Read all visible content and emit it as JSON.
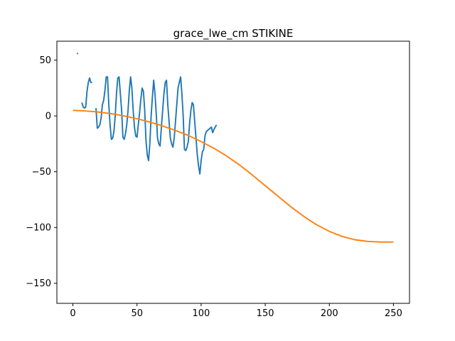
{
  "chart_data": {
    "type": "line",
    "title": "grace_lwe_cm STIKINE",
    "xlabel": "",
    "ylabel": "",
    "xlim": [
      -12.5,
      262.5
    ],
    "ylim": [
      -168,
      67
    ],
    "xticks": [
      0,
      50,
      100,
      150,
      200,
      250
    ],
    "yticks": [
      -150,
      -100,
      -50,
      0,
      50
    ],
    "grid": false,
    "colors": {
      "series": "#1f77b4",
      "trend": "#ff7f0e",
      "axes": "#000000",
      "background": "#ffffff"
    },
    "series": [
      {
        "segments": [
          {
            "x": [
              3,
              4
            ],
            "y": [
              56,
              56
            ]
          },
          {
            "x": [
              7,
              8,
              9,
              10,
              11,
              12,
              13,
              14,
              15
            ],
            "y": [
              12,
              8,
              7,
              8,
              22,
              30,
              34,
              30,
              30
            ]
          },
          {
            "x": [
              18,
              19,
              20,
              21,
              22,
              23,
              24,
              25,
              26,
              27,
              28,
              29,
              30,
              31,
              32,
              33,
              34,
              35,
              36,
              37,
              38,
              39,
              40,
              41,
              42,
              43,
              44,
              45,
              46,
              47,
              48,
              49,
              50,
              51,
              52,
              53,
              54,
              55,
              56,
              57,
              58,
              59,
              60,
              61,
              62,
              63,
              64,
              65,
              66,
              67,
              68,
              69,
              70,
              71,
              72,
              73,
              74,
              75,
              76,
              77,
              78,
              79,
              80,
              81,
              82,
              83,
              84,
              85,
              86,
              87,
              88,
              89,
              90,
              91,
              92,
              93,
              94,
              95,
              96,
              97,
              98,
              99,
              100,
              101,
              102,
              103,
              104,
              105,
              106,
              107,
              108,
              109,
              110,
              111,
              112
            ],
            "y": [
              7,
              -11,
              -10,
              -8,
              -2,
              10,
              14,
              23,
              35,
              35,
              10,
              -8,
              -21,
              -20,
              -14,
              0,
              20,
              34,
              35,
              20,
              5,
              -19,
              -21,
              -16,
              -8,
              5,
              23,
              35,
              25,
              5,
              -10,
              -18,
              -19,
              -8,
              3,
              15,
              25,
              22,
              5,
              -22,
              -35,
              -40,
              -25,
              0,
              17,
              32,
              20,
              2,
              -20,
              -25,
              -27,
              -10,
              5,
              20,
              30,
              32,
              10,
              -5,
              -20,
              -25,
              -28,
              -20,
              -5,
              10,
              25,
              30,
              35,
              20,
              0,
              -30,
              -31,
              -28,
              -23,
              -7,
              5,
              12,
              10,
              -5,
              -20,
              -35,
              -45,
              -52,
              -40,
              -32,
              -30,
              -18,
              -14,
              -13,
              -12,
              -11,
              -10,
              -15,
              -12,
              -10,
              -8
            ]
          }
        ]
      },
      {
        "x": [
          0,
          10,
          20,
          30,
          40,
          50,
          60,
          70,
          80,
          90,
          100,
          110,
          120,
          130,
          140,
          150,
          160,
          170,
          180,
          190,
          200,
          210,
          220,
          230,
          240,
          250
        ],
        "y": [
          5,
          4.5,
          3.5,
          2,
          0,
          -2.5,
          -5.5,
          -9,
          -13,
          -17.5,
          -23,
          -29,
          -36,
          -44,
          -53,
          -62.5,
          -72,
          -81.5,
          -90,
          -97.5,
          -103.5,
          -108,
          -111,
          -112.5,
          -113,
          -113
        ]
      }
    ]
  }
}
